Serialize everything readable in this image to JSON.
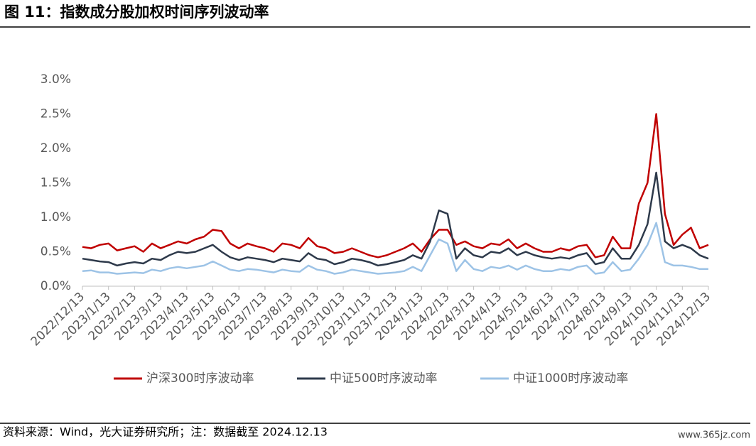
{
  "header": {
    "title": "图 11：指数成分股加权时间序列波动率"
  },
  "chart_data": {
    "type": "line",
    "categories": [
      "2022/12/13",
      null,
      null,
      "2023/1/13",
      null,
      null,
      "2023/2/13",
      null,
      null,
      "2023/3/13",
      null,
      null,
      "2023/4/13",
      null,
      null,
      "2023/5/13",
      null,
      null,
      "2023/6/13",
      null,
      null,
      "2023/7/13",
      null,
      null,
      "2023/8/13",
      null,
      null,
      "2023/9/13",
      null,
      null,
      "2023/10/13",
      null,
      null,
      "2023/11/13",
      null,
      null,
      "2023/12/13",
      null,
      null,
      "2024/1/13",
      null,
      null,
      "2024/2/13",
      null,
      null,
      "2024/3/13",
      null,
      null,
      "2024/4/13",
      null,
      null,
      "2024/5/13",
      null,
      null,
      "2024/6/13",
      null,
      null,
      "2024/7/13",
      null,
      null,
      "2024/8/13",
      null,
      null,
      "2024/9/13",
      null,
      null,
      "2024/10/13",
      null,
      null,
      "2024/11/13",
      null,
      null,
      "2024/12/13"
    ],
    "series": [
      {
        "name": "沪深300时序波动率",
        "color": "#c00000",
        "values": [
          0.57,
          0.55,
          0.6,
          0.62,
          0.52,
          0.55,
          0.58,
          0.5,
          0.62,
          0.55,
          0.6,
          0.65,
          0.62,
          0.68,
          0.72,
          0.82,
          0.8,
          0.62,
          0.55,
          0.62,
          0.58,
          0.55,
          0.5,
          0.62,
          0.6,
          0.55,
          0.7,
          0.58,
          0.55,
          0.48,
          0.5,
          0.55,
          0.5,
          0.45,
          0.42,
          0.45,
          0.5,
          0.55,
          0.62,
          0.5,
          0.68,
          0.82,
          0.82,
          0.6,
          0.65,
          0.58,
          0.55,
          0.62,
          0.6,
          0.68,
          0.55,
          0.62,
          0.55,
          0.5,
          0.5,
          0.55,
          0.52,
          0.58,
          0.6,
          0.42,
          0.45,
          0.72,
          0.55,
          0.55,
          1.2,
          1.5,
          2.5,
          1.05,
          0.6,
          0.75,
          0.85,
          0.55,
          0.6
        ]
      },
      {
        "name": "中证500时序波动率",
        "color": "#2e3a4b",
        "values": [
          0.4,
          0.38,
          0.36,
          0.35,
          0.3,
          0.33,
          0.35,
          0.33,
          0.4,
          0.38,
          0.45,
          0.5,
          0.48,
          0.5,
          0.55,
          0.6,
          0.5,
          0.42,
          0.38,
          0.42,
          0.4,
          0.38,
          0.35,
          0.4,
          0.38,
          0.36,
          0.48,
          0.4,
          0.38,
          0.32,
          0.35,
          0.4,
          0.38,
          0.35,
          0.3,
          0.32,
          0.35,
          0.38,
          0.45,
          0.4,
          0.65,
          1.1,
          1.05,
          0.4,
          0.55,
          0.45,
          0.42,
          0.5,
          0.48,
          0.55,
          0.45,
          0.5,
          0.45,
          0.42,
          0.4,
          0.42,
          0.4,
          0.45,
          0.48,
          0.32,
          0.35,
          0.55,
          0.4,
          0.4,
          0.6,
          0.9,
          1.65,
          0.65,
          0.55,
          0.6,
          0.55,
          0.45,
          0.4
        ]
      },
      {
        "name": "中证1000时序波动率",
        "color": "#9dc3e6",
        "values": [
          0.22,
          0.23,
          0.2,
          0.2,
          0.18,
          0.19,
          0.2,
          0.19,
          0.24,
          0.22,
          0.26,
          0.28,
          0.26,
          0.28,
          0.3,
          0.36,
          0.3,
          0.24,
          0.22,
          0.25,
          0.24,
          0.22,
          0.2,
          0.24,
          0.22,
          0.21,
          0.3,
          0.24,
          0.22,
          0.18,
          0.2,
          0.24,
          0.22,
          0.2,
          0.18,
          0.19,
          0.2,
          0.22,
          0.28,
          0.22,
          0.45,
          0.68,
          0.62,
          0.22,
          0.38,
          0.25,
          0.22,
          0.28,
          0.26,
          0.3,
          0.24,
          0.3,
          0.25,
          0.22,
          0.22,
          0.25,
          0.23,
          0.28,
          0.3,
          0.18,
          0.2,
          0.35,
          0.22,
          0.24,
          0.4,
          0.6,
          0.92,
          0.35,
          0.3,
          0.3,
          0.28,
          0.25,
          0.25
        ]
      }
    ],
    "ylim": [
      0,
      3
    ],
    "yticks": [
      {
        "value": 0,
        "label": "0.0%"
      },
      {
        "value": 0.5,
        "label": "0.5%"
      },
      {
        "value": 1,
        "label": "1.0%"
      },
      {
        "value": 1.5,
        "label": "1.5%"
      },
      {
        "value": 2,
        "label": "2.0%"
      },
      {
        "value": 2.5,
        "label": "2.5%"
      },
      {
        "value": 3,
        "label": "3.0%"
      }
    ]
  },
  "footer": {
    "source": "资料来源：Wind，光大证券研究所；注：数据截至 2024.12.13",
    "watermark": "www.365jz.com"
  }
}
